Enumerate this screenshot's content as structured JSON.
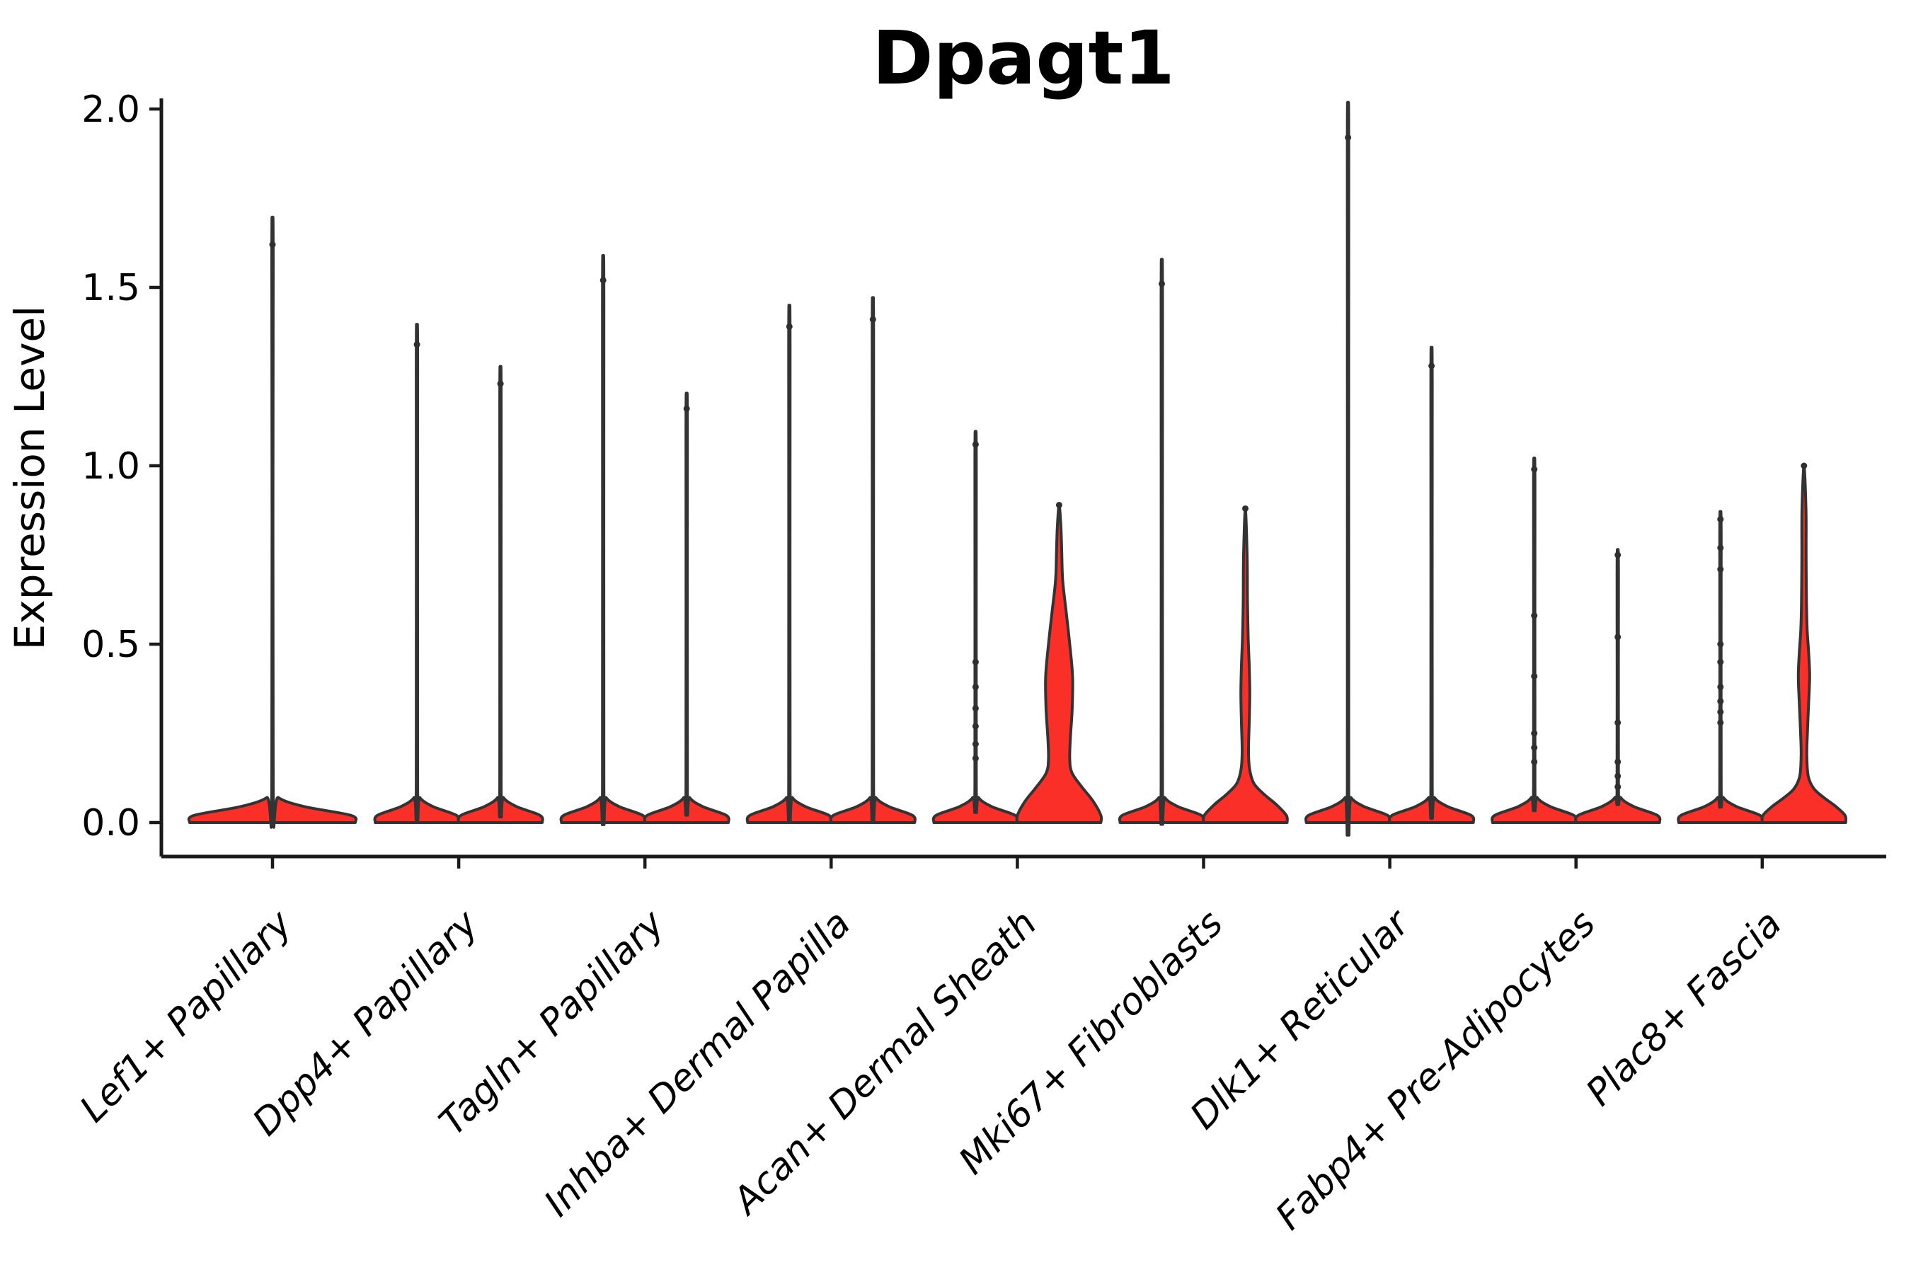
{
  "chart_data": {
    "type": "violin",
    "title": "Dpagt1",
    "ylabel": "Expression Level",
    "xlabel": "",
    "ylim": [
      -0.095,
      2.03
    ],
    "yticks": [
      {
        "value": 0.0,
        "label": "0.0"
      },
      {
        "value": 0.5,
        "label": "0.5"
      },
      {
        "value": 1.0,
        "label": "1.0"
      },
      {
        "value": 1.5,
        "label": "1.5"
      },
      {
        "value": 2.0,
        "label": "2.0"
      }
    ],
    "grid": false,
    "legend": null,
    "style": {
      "violin_fill": "#fa2f28",
      "violin_outline": "#333333",
      "spine_color": "#1a1a1a",
      "point_color": "#2f2f2f",
      "text_color": "#000000"
    },
    "categories": [
      {
        "label": "Lef1+ Papillary",
        "violins": [
          {
            "slot": "center",
            "max": 1.62,
            "shape": "spike",
            "points": [
              1.62
            ]
          }
        ]
      },
      {
        "label": "Dpp4+ Papillary",
        "violins": [
          {
            "slot": "left",
            "max": 1.34,
            "shape": "spike",
            "points": [
              1.34
            ]
          },
          {
            "slot": "right",
            "max": 1.23,
            "shape": "spike",
            "points": [
              1.23
            ]
          }
        ]
      },
      {
        "label": "Tagln+ Papillary",
        "violins": [
          {
            "slot": "left",
            "max": 1.52,
            "shape": "spike",
            "points": [
              1.52
            ]
          },
          {
            "slot": "right",
            "max": 1.16,
            "shape": "spike",
            "points": [
              1.16
            ]
          }
        ]
      },
      {
        "label": "Inhba+ Dermal Papilla",
        "violins": [
          {
            "slot": "left",
            "max": 1.39,
            "shape": "spike",
            "points": [
              1.39
            ]
          },
          {
            "slot": "right",
            "max": 1.41,
            "shape": "spike",
            "points": [
              1.41
            ]
          }
        ]
      },
      {
        "label": "Acan+ Dermal Sheath",
        "violins": [
          {
            "slot": "left",
            "max": 1.06,
            "shape": "spike",
            "points": [
              1.06,
              0.45,
              0.38,
              0.32,
              0.27,
              0.22,
              0.18
            ]
          },
          {
            "slot": "right",
            "max": 0.89,
            "shape": "profile",
            "profile": [
              [
                0,
                59
              ],
              [
                0.02,
                59
              ],
              [
                0.06,
                48
              ],
              [
                0.1,
                32
              ],
              [
                0.14,
                18
              ],
              [
                0.18,
                15
              ],
              [
                0.24,
                16
              ],
              [
                0.32,
                18.5
              ],
              [
                0.41,
                19
              ],
              [
                0.5,
                15
              ],
              [
                0.59,
                10
              ],
              [
                0.68,
                5
              ],
              [
                0.76,
                3.7
              ],
              [
                0.83,
                2.5
              ],
              [
                0.89,
                0
              ]
            ],
            "points": [
              0.89
            ]
          }
        ]
      },
      {
        "label": "Mki67+ Fibroblasts",
        "violins": [
          {
            "slot": "left",
            "max": 1.51,
            "shape": "spike",
            "points": [
              1.51
            ]
          },
          {
            "slot": "right",
            "max": 0.88,
            "shape": "profile",
            "profile": [
              [
                0,
                59
              ],
              [
                0.02,
                58
              ],
              [
                0.05,
                44
              ],
              [
                0.08,
                26
              ],
              [
                0.11,
                12
              ],
              [
                0.15,
                6
              ],
              [
                0.2,
                4.5
              ],
              [
                0.28,
                5.5
              ],
              [
                0.36,
                6.3
              ],
              [
                0.44,
                5.5
              ],
              [
                0.52,
                4
              ],
              [
                0.62,
                3
              ],
              [
                0.75,
                2.5
              ],
              [
                0.88,
                0
              ]
            ],
            "points": [
              0.88
            ]
          }
        ]
      },
      {
        "label": "Dlk1+ Reticular",
        "violins": [
          {
            "slot": "left",
            "max": 1.92,
            "shape": "spike",
            "points": [
              1.92
            ]
          },
          {
            "slot": "right",
            "max": 1.28,
            "shape": "spike",
            "points": [
              1.28
            ]
          }
        ]
      },
      {
        "label": "Fabp4+ Pre-Adipocytes",
        "violins": [
          {
            "slot": "left",
            "max": 0.99,
            "shape": "spike",
            "points": [
              0.99,
              0.58,
              0.41,
              0.25,
              0.21,
              0.17
            ]
          },
          {
            "slot": "right",
            "max": 0.75,
            "shape": "spike",
            "points": [
              0.75,
              0.52,
              0.28,
              0.17,
              0.13,
              0.1
            ]
          }
        ]
      },
      {
        "label": "Plac8+ Fascia",
        "violins": [
          {
            "slot": "left",
            "max": 0.85,
            "shape": "spike",
            "points": [
              0.85,
              0.77,
              0.71,
              0.5,
              0.45,
              0.38,
              0.34,
              0.31,
              0.28
            ]
          },
          {
            "slot": "right",
            "max": 1.0,
            "shape": "profile",
            "profile": [
              [
                0,
                59
              ],
              [
                0.02,
                58
              ],
              [
                0.045,
                45
              ],
              [
                0.07,
                28
              ],
              [
                0.095,
                14
              ],
              [
                0.13,
                6
              ],
              [
                0.19,
                4
              ],
              [
                0.26,
                5
              ],
              [
                0.33,
                6.5
              ],
              [
                0.41,
                8
              ],
              [
                0.48,
                6.5
              ],
              [
                0.54,
                4.5
              ],
              [
                0.62,
                3.5
              ],
              [
                0.75,
                3
              ],
              [
                0.88,
                2.8
              ],
              [
                1.0,
                0
              ]
            ],
            "points": [
              1.0
            ]
          }
        ]
      }
    ]
  }
}
